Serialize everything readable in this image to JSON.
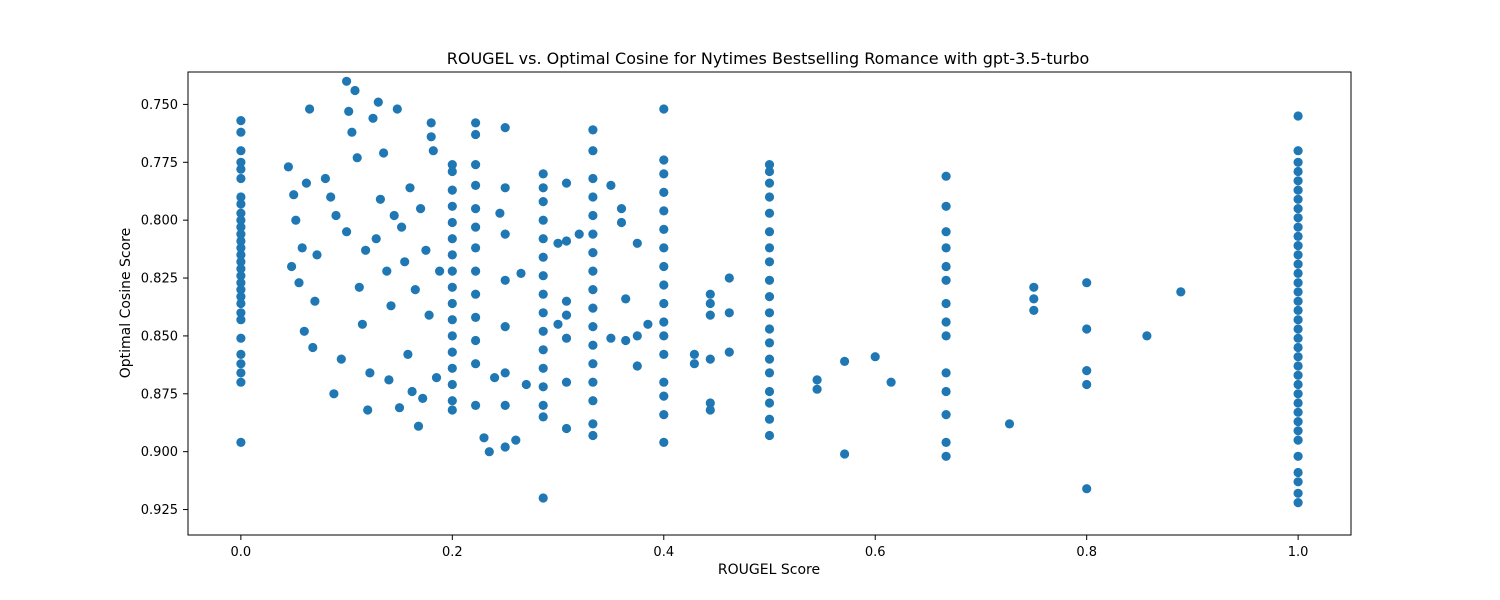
{
  "chart_data": {
    "type": "scatter",
    "title": "ROUGEL vs. Optimal Cosine for Nytimes Bestselling Romance with gpt-3.5-turbo",
    "xlabel": "ROUGEL Score",
    "ylabel": "Optimal Cosine Score",
    "xlim": [
      -0.05,
      1.05
    ],
    "ylim": [
      0.936,
      0.736
    ],
    "y_inverted": true,
    "xticks": [
      0.0,
      0.2,
      0.4,
      0.6,
      0.8,
      1.0
    ],
    "xtick_labels": [
      "0.0",
      "0.2",
      "0.4",
      "0.6",
      "0.8",
      "1.0"
    ],
    "yticks": [
      0.75,
      0.775,
      0.8,
      0.825,
      0.85,
      0.875,
      0.9,
      0.925
    ],
    "ytick_labels": [
      "0.750",
      "0.775",
      "0.800",
      "0.825",
      "0.850",
      "0.875",
      "0.900",
      "0.925"
    ],
    "grid": false,
    "marker_color": "#1f77b4",
    "series": [
      {
        "points": [
          [
            0.0,
            0.757
          ],
          [
            0.0,
            0.762
          ],
          [
            0.0,
            0.77
          ],
          [
            0.0,
            0.775
          ],
          [
            0.0,
            0.778
          ],
          [
            0.0,
            0.782
          ],
          [
            0.0,
            0.79
          ],
          [
            0.0,
            0.793
          ],
          [
            0.0,
            0.797
          ],
          [
            0.0,
            0.8
          ],
          [
            0.0,
            0.803
          ],
          [
            0.0,
            0.806
          ],
          [
            0.0,
            0.809
          ],
          [
            0.0,
            0.812
          ],
          [
            0.0,
            0.815
          ],
          [
            0.0,
            0.818
          ],
          [
            0.0,
            0.821
          ],
          [
            0.0,
            0.824
          ],
          [
            0.0,
            0.827
          ],
          [
            0.0,
            0.83
          ],
          [
            0.0,
            0.833
          ],
          [
            0.0,
            0.836
          ],
          [
            0.0,
            0.84
          ],
          [
            0.0,
            0.843
          ],
          [
            0.0,
            0.851
          ],
          [
            0.0,
            0.858
          ],
          [
            0.0,
            0.862
          ],
          [
            0.0,
            0.866
          ],
          [
            0.0,
            0.87
          ],
          [
            0.0,
            0.896
          ],
          [
            0.045,
            0.777
          ],
          [
            0.048,
            0.82
          ],
          [
            0.05,
            0.789
          ],
          [
            0.052,
            0.8
          ],
          [
            0.055,
            0.827
          ],
          [
            0.058,
            0.812
          ],
          [
            0.06,
            0.848
          ],
          [
            0.062,
            0.784
          ],
          [
            0.065,
            0.752
          ],
          [
            0.068,
            0.855
          ],
          [
            0.07,
            0.835
          ],
          [
            0.072,
            0.815
          ],
          [
            0.08,
            0.782
          ],
          [
            0.085,
            0.79
          ],
          [
            0.088,
            0.875
          ],
          [
            0.09,
            0.798
          ],
          [
            0.095,
            0.86
          ],
          [
            0.1,
            0.74
          ],
          [
            0.1,
            0.805
          ],
          [
            0.102,
            0.753
          ],
          [
            0.105,
            0.762
          ],
          [
            0.108,
            0.744
          ],
          [
            0.11,
            0.773
          ],
          [
            0.112,
            0.829
          ],
          [
            0.115,
            0.845
          ],
          [
            0.118,
            0.813
          ],
          [
            0.12,
            0.882
          ],
          [
            0.122,
            0.866
          ],
          [
            0.125,
            0.756
          ],
          [
            0.128,
            0.808
          ],
          [
            0.13,
            0.749
          ],
          [
            0.132,
            0.791
          ],
          [
            0.135,
            0.771
          ],
          [
            0.138,
            0.822
          ],
          [
            0.14,
            0.869
          ],
          [
            0.142,
            0.837
          ],
          [
            0.145,
            0.798
          ],
          [
            0.148,
            0.752
          ],
          [
            0.15,
            0.881
          ],
          [
            0.152,
            0.803
          ],
          [
            0.155,
            0.818
          ],
          [
            0.158,
            0.858
          ],
          [
            0.16,
            0.786
          ],
          [
            0.162,
            0.874
          ],
          [
            0.165,
            0.83
          ],
          [
            0.168,
            0.889
          ],
          [
            0.17,
            0.795
          ],
          [
            0.172,
            0.877
          ],
          [
            0.175,
            0.813
          ],
          [
            0.178,
            0.841
          ],
          [
            0.18,
            0.758
          ],
          [
            0.18,
            0.764
          ],
          [
            0.182,
            0.77
          ],
          [
            0.185,
            0.868
          ],
          [
            0.188,
            0.822
          ],
          [
            0.2,
            0.776
          ],
          [
            0.2,
            0.779
          ],
          [
            0.2,
            0.787
          ],
          [
            0.2,
            0.794
          ],
          [
            0.2,
            0.801
          ],
          [
            0.2,
            0.808
          ],
          [
            0.2,
            0.815
          ],
          [
            0.2,
            0.822
          ],
          [
            0.2,
            0.829
          ],
          [
            0.2,
            0.836
          ],
          [
            0.2,
            0.843
          ],
          [
            0.2,
            0.85
          ],
          [
            0.2,
            0.857
          ],
          [
            0.2,
            0.864
          ],
          [
            0.2,
            0.871
          ],
          [
            0.2,
            0.878
          ],
          [
            0.2,
            0.882
          ],
          [
            0.222,
            0.758
          ],
          [
            0.222,
            0.763
          ],
          [
            0.222,
            0.776
          ],
          [
            0.222,
            0.785
          ],
          [
            0.222,
            0.795
          ],
          [
            0.222,
            0.803
          ],
          [
            0.222,
            0.812
          ],
          [
            0.222,
            0.822
          ],
          [
            0.222,
            0.832
          ],
          [
            0.222,
            0.842
          ],
          [
            0.222,
            0.852
          ],
          [
            0.222,
            0.862
          ],
          [
            0.222,
            0.88
          ],
          [
            0.23,
            0.894
          ],
          [
            0.235,
            0.9
          ],
          [
            0.24,
            0.868
          ],
          [
            0.245,
            0.797
          ],
          [
            0.25,
            0.76
          ],
          [
            0.25,
            0.786
          ],
          [
            0.25,
            0.806
          ],
          [
            0.25,
            0.826
          ],
          [
            0.25,
            0.846
          ],
          [
            0.25,
            0.866
          ],
          [
            0.25,
            0.88
          ],
          [
            0.25,
            0.898
          ],
          [
            0.26,
            0.895
          ],
          [
            0.265,
            0.823
          ],
          [
            0.27,
            0.871
          ],
          [
            0.286,
            0.78
          ],
          [
            0.286,
            0.786
          ],
          [
            0.286,
            0.792
          ],
          [
            0.286,
            0.8
          ],
          [
            0.286,
            0.808
          ],
          [
            0.286,
            0.816
          ],
          [
            0.286,
            0.824
          ],
          [
            0.286,
            0.832
          ],
          [
            0.286,
            0.84
          ],
          [
            0.286,
            0.848
          ],
          [
            0.286,
            0.856
          ],
          [
            0.286,
            0.864
          ],
          [
            0.286,
            0.872
          ],
          [
            0.286,
            0.88
          ],
          [
            0.286,
            0.885
          ],
          [
            0.286,
            0.92
          ],
          [
            0.3,
            0.81
          ],
          [
            0.3,
            0.845
          ],
          [
            0.308,
            0.784
          ],
          [
            0.308,
            0.809
          ],
          [
            0.308,
            0.835
          ],
          [
            0.308,
            0.841
          ],
          [
            0.308,
            0.851
          ],
          [
            0.308,
            0.87
          ],
          [
            0.308,
            0.89
          ],
          [
            0.32,
            0.806
          ],
          [
            0.333,
            0.761
          ],
          [
            0.333,
            0.77
          ],
          [
            0.333,
            0.782
          ],
          [
            0.333,
            0.79
          ],
          [
            0.333,
            0.798
          ],
          [
            0.333,
            0.806
          ],
          [
            0.333,
            0.814
          ],
          [
            0.333,
            0.822
          ],
          [
            0.333,
            0.83
          ],
          [
            0.333,
            0.838
          ],
          [
            0.333,
            0.846
          ],
          [
            0.333,
            0.854
          ],
          [
            0.333,
            0.862
          ],
          [
            0.333,
            0.87
          ],
          [
            0.333,
            0.878
          ],
          [
            0.333,
            0.888
          ],
          [
            0.333,
            0.893
          ],
          [
            0.35,
            0.785
          ],
          [
            0.35,
            0.851
          ],
          [
            0.36,
            0.795
          ],
          [
            0.36,
            0.801
          ],
          [
            0.364,
            0.834
          ],
          [
            0.364,
            0.852
          ],
          [
            0.375,
            0.81
          ],
          [
            0.375,
            0.85
          ],
          [
            0.375,
            0.863
          ],
          [
            0.385,
            0.845
          ],
          [
            0.4,
            0.752
          ],
          [
            0.4,
            0.774
          ],
          [
            0.4,
            0.78
          ],
          [
            0.4,
            0.788
          ],
          [
            0.4,
            0.796
          ],
          [
            0.4,
            0.804
          ],
          [
            0.4,
            0.812
          ],
          [
            0.4,
            0.82
          ],
          [
            0.4,
            0.828
          ],
          [
            0.4,
            0.836
          ],
          [
            0.4,
            0.844
          ],
          [
            0.4,
            0.85
          ],
          [
            0.4,
            0.858
          ],
          [
            0.4,
            0.87
          ],
          [
            0.4,
            0.876
          ],
          [
            0.4,
            0.884
          ],
          [
            0.4,
            0.896
          ],
          [
            0.429,
            0.858
          ],
          [
            0.429,
            0.862
          ],
          [
            0.444,
            0.832
          ],
          [
            0.444,
            0.836
          ],
          [
            0.444,
            0.841
          ],
          [
            0.444,
            0.86
          ],
          [
            0.444,
            0.879
          ],
          [
            0.444,
            0.882
          ],
          [
            0.462,
            0.84
          ],
          [
            0.462,
            0.857
          ],
          [
            0.462,
            0.825
          ],
          [
            0.5,
            0.776
          ],
          [
            0.5,
            0.779
          ],
          [
            0.5,
            0.784
          ],
          [
            0.5,
            0.79
          ],
          [
            0.5,
            0.797
          ],
          [
            0.5,
            0.805
          ],
          [
            0.5,
            0.812
          ],
          [
            0.5,
            0.818
          ],
          [
            0.5,
            0.826
          ],
          [
            0.5,
            0.833
          ],
          [
            0.5,
            0.84
          ],
          [
            0.5,
            0.847
          ],
          [
            0.5,
            0.853
          ],
          [
            0.5,
            0.86
          ],
          [
            0.5,
            0.866
          ],
          [
            0.5,
            0.874
          ],
          [
            0.5,
            0.879
          ],
          [
            0.5,
            0.886
          ],
          [
            0.5,
            0.893
          ],
          [
            0.545,
            0.869
          ],
          [
            0.545,
            0.873
          ],
          [
            0.571,
            0.861
          ],
          [
            0.571,
            0.901
          ],
          [
            0.6,
            0.859
          ],
          [
            0.615,
            0.87
          ],
          [
            0.667,
            0.781
          ],
          [
            0.667,
            0.794
          ],
          [
            0.667,
            0.805
          ],
          [
            0.667,
            0.812
          ],
          [
            0.667,
            0.82
          ],
          [
            0.667,
            0.826
          ],
          [
            0.667,
            0.836
          ],
          [
            0.667,
            0.844
          ],
          [
            0.667,
            0.85
          ],
          [
            0.667,
            0.866
          ],
          [
            0.667,
            0.874
          ],
          [
            0.667,
            0.884
          ],
          [
            0.667,
            0.896
          ],
          [
            0.667,
            0.902
          ],
          [
            0.727,
            0.888
          ],
          [
            0.75,
            0.829
          ],
          [
            0.75,
            0.834
          ],
          [
            0.75,
            0.839
          ],
          [
            0.8,
            0.827
          ],
          [
            0.8,
            0.847
          ],
          [
            0.8,
            0.865
          ],
          [
            0.8,
            0.871
          ],
          [
            0.8,
            0.916
          ],
          [
            0.857,
            0.85
          ],
          [
            0.889,
            0.831
          ],
          [
            1.0,
            0.755
          ],
          [
            1.0,
            0.77
          ],
          [
            1.0,
            0.775
          ],
          [
            1.0,
            0.779
          ],
          [
            1.0,
            0.783
          ],
          [
            1.0,
            0.787
          ],
          [
            1.0,
            0.791
          ],
          [
            1.0,
            0.795
          ],
          [
            1.0,
            0.799
          ],
          [
            1.0,
            0.803
          ],
          [
            1.0,
            0.807
          ],
          [
            1.0,
            0.811
          ],
          [
            1.0,
            0.815
          ],
          [
            1.0,
            0.819
          ],
          [
            1.0,
            0.823
          ],
          [
            1.0,
            0.827
          ],
          [
            1.0,
            0.831
          ],
          [
            1.0,
            0.835
          ],
          [
            1.0,
            0.839
          ],
          [
            1.0,
            0.843
          ],
          [
            1.0,
            0.847
          ],
          [
            1.0,
            0.851
          ],
          [
            1.0,
            0.855
          ],
          [
            1.0,
            0.859
          ],
          [
            1.0,
            0.863
          ],
          [
            1.0,
            0.867
          ],
          [
            1.0,
            0.871
          ],
          [
            1.0,
            0.875
          ],
          [
            1.0,
            0.879
          ],
          [
            1.0,
            0.883
          ],
          [
            1.0,
            0.887
          ],
          [
            1.0,
            0.891
          ],
          [
            1.0,
            0.895
          ],
          [
            1.0,
            0.902
          ],
          [
            1.0,
            0.909
          ],
          [
            1.0,
            0.913
          ],
          [
            1.0,
            0.918
          ],
          [
            1.0,
            0.922
          ]
        ]
      }
    ]
  }
}
